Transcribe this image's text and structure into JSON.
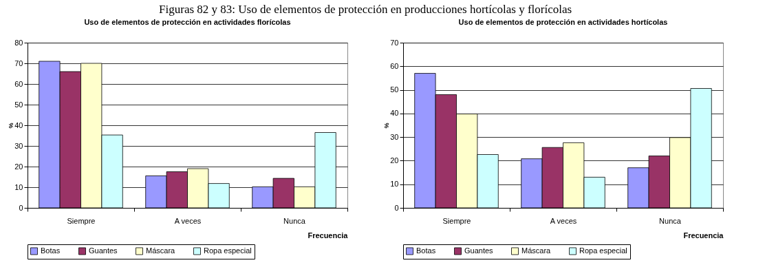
{
  "chart_data": [
    {
      "type": "bar",
      "title": "Uso de elementos de protección en actividades florícolas",
      "xlabel": "Frecuencia",
      "ylabel": "%",
      "annotations": [
        "Figuras 82 y 83: Uso de elementos de protección en producciones hortícolas y florícolas"
      ],
      "categories": [
        "Siempre",
        "A veces",
        "Nunca"
      ],
      "series": [
        {
          "name": "Botas",
          "color": "#9999ff",
          "values": [
            71,
            15.5,
            10.2
          ]
        },
        {
          "name": "Guantes",
          "color": "#993366",
          "values": [
            66,
            17.5,
            14.3
          ]
        },
        {
          "name": "Máscara",
          "color": "#ffffcc",
          "values": [
            70,
            19,
            10.2
          ]
        },
        {
          "name": "Ropa especial",
          "color": "#ccffff",
          "values": [
            35.3,
            11.8,
            36.5
          ]
        }
      ],
      "ylim": [
        0,
        80
      ],
      "yticks": [
        0,
        10,
        20,
        30,
        40,
        50,
        60,
        70,
        80
      ],
      "grid": "y",
      "legend": "bottom"
    },
    {
      "type": "bar",
      "title": "Uso de elementos de protección en actividades hortícolas",
      "xlabel": "Frecuencia",
      "ylabel": "%",
      "categories": [
        "Siempre",
        "A veces",
        "Nunca"
      ],
      "series": [
        {
          "name": "Botas",
          "color": "#9999ff",
          "values": [
            57,
            20.8,
            17
          ]
        },
        {
          "name": "Guantes",
          "color": "#993366",
          "values": [
            48,
            25.6,
            22
          ]
        },
        {
          "name": "Máscara",
          "color": "#ffffcc",
          "values": [
            39.8,
            27.6,
            29.8
          ]
        },
        {
          "name": "Ropa especial",
          "color": "#ccffff",
          "values": [
            22.6,
            13,
            50.6
          ]
        }
      ],
      "ylim": [
        0,
        70
      ],
      "yticks": [
        0,
        10,
        20,
        30,
        40,
        50,
        60,
        70
      ],
      "grid": "y",
      "legend": "bottom"
    }
  ]
}
